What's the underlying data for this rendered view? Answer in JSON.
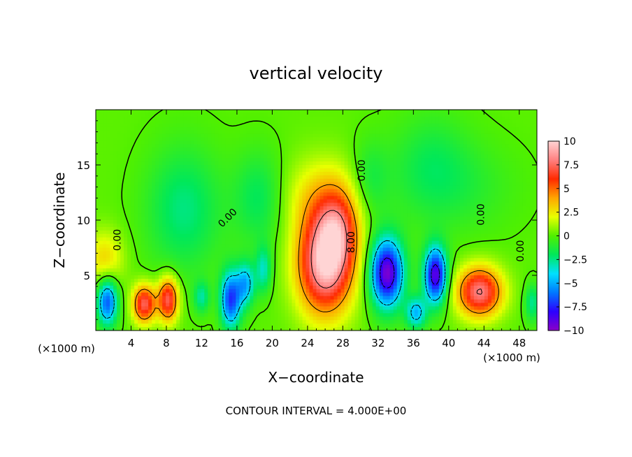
{
  "chart_data": {
    "type": "heatmap",
    "title": "vertical velocity",
    "xlabel": "X−coordinate",
    "ylabel": "Z−coordinate",
    "x_unit_left": "(×1000 m)",
    "x_unit_right": "(×1000 m)",
    "footer": "CONTOUR INTERVAL = 4.000E+00",
    "xlim": [
      0,
      50
    ],
    "ylim": [
      0,
      20
    ],
    "xticks": [
      4,
      8,
      12,
      16,
      20,
      24,
      28,
      32,
      36,
      40,
      44,
      48
    ],
    "xtick_labels": [
      "4",
      "8",
      "12",
      "16",
      "20",
      "24",
      "28",
      "32",
      "36",
      "40",
      "44",
      "48"
    ],
    "yticks": [
      5,
      10,
      15
    ],
    "ytick_labels": [
      "5",
      "10",
      "15"
    ],
    "colorbar": {
      "range": [
        -10,
        10
      ],
      "ticks": [
        10,
        7.5,
        5,
        2.5,
        0,
        -2.5,
        -5,
        -7.5,
        -10
      ],
      "tick_labels": [
        "10",
        "7.5",
        "5",
        "2.5",
        "0",
        "−2.5",
        "−5",
        "−7.5",
        "−10"
      ],
      "colors": [
        "#8a00c8",
        "#2c00ff",
        "#0078ff",
        "#00e0ff",
        "#00e85a",
        "#50f000",
        "#e8ff00",
        "#ffa500",
        "#ff2a00",
        "#ff8080",
        "#ffd4d4"
      ]
    },
    "contour_labels": [
      {
        "text": "0.00",
        "x": 2.8,
        "y": 8.2,
        "rot": -90
      },
      {
        "text": "0.00",
        "x": 15.2,
        "y": 10.0,
        "rot": -45
      },
      {
        "text": "0.00",
        "x": 30.5,
        "y": 14.5,
        "rot": -90
      },
      {
        "text": "8.00",
        "x": 29.3,
        "y": 8.0,
        "rot": -90
      },
      {
        "text": "0.00",
        "x": 44.0,
        "y": 10.5,
        "rot": -90
      },
      {
        "text": "0.00",
        "x": 48.5,
        "y": 7.2,
        "rot": -90
      }
    ],
    "features": [
      {
        "x": 26.0,
        "z": 6.0,
        "sx": 2.2,
        "sz": 3.2,
        "amp": 9.5
      },
      {
        "x": 27.5,
        "z": 9.0,
        "sx": 1.6,
        "sz": 2.4,
        "amp": 4.0
      },
      {
        "x": 26.0,
        "z": 12.0,
        "sx": 3.2,
        "sz": 2.6,
        "amp": 2.8
      },
      {
        "x": 5.5,
        "z": 2.4,
        "sx": 0.9,
        "sz": 1.2,
        "amp": 7.5
      },
      {
        "x": 8.2,
        "z": 2.8,
        "sx": 0.8,
        "sz": 1.4,
        "amp": 7.5
      },
      {
        "x": 43.5,
        "z": 3.5,
        "sx": 1.8,
        "sz": 1.6,
        "amp": 8.0
      },
      {
        "x": 1.3,
        "z": 2.6,
        "sx": 0.8,
        "sz": 1.5,
        "amp": -7.0
      },
      {
        "x": 15.3,
        "z": 2.8,
        "sx": 0.8,
        "sz": 1.8,
        "amp": -7.5
      },
      {
        "x": 17.0,
        "z": 4.2,
        "sx": 0.7,
        "sz": 1.4,
        "amp": -5.0
      },
      {
        "x": 19.0,
        "z": 5.5,
        "sx": 0.6,
        "sz": 1.5,
        "amp": -3.5
      },
      {
        "x": 33.0,
        "z": 5.2,
        "sx": 1.3,
        "sz": 2.2,
        "amp": -10.0
      },
      {
        "x": 38.5,
        "z": 5.0,
        "sx": 0.9,
        "sz": 1.8,
        "amp": -9.5
      },
      {
        "x": 36.3,
        "z": 1.6,
        "sx": 0.8,
        "sz": 1.0,
        "amp": -5.0
      },
      {
        "x": 12.0,
        "z": 3.0,
        "sx": 0.6,
        "sz": 1.0,
        "amp": -3.0
      },
      {
        "x": 49.5,
        "z": 2.5,
        "sx": 0.6,
        "sz": 1.2,
        "amp": -3.0
      },
      {
        "x": 10.0,
        "z": 11.0,
        "sx": 3.0,
        "sz": 4.0,
        "amp": -2.6
      },
      {
        "x": 18.5,
        "z": 12.0,
        "sx": 2.0,
        "sz": 3.0,
        "amp": -2.2
      },
      {
        "x": 40.0,
        "z": 13.0,
        "sx": 5.0,
        "sz": 3.0,
        "amp": -1.4
      },
      {
        "x": 31.0,
        "z": 13.5,
        "sx": 1.5,
        "sz": 2.5,
        "amp": -1.8
      },
      {
        "x": 1.0,
        "z": 6.5,
        "sx": 1.5,
        "sz": 1.8,
        "amp": 2.8
      },
      {
        "x": 38.0,
        "z": 16.0,
        "sx": 3.0,
        "sz": 3.0,
        "amp": -1.2
      }
    ]
  }
}
